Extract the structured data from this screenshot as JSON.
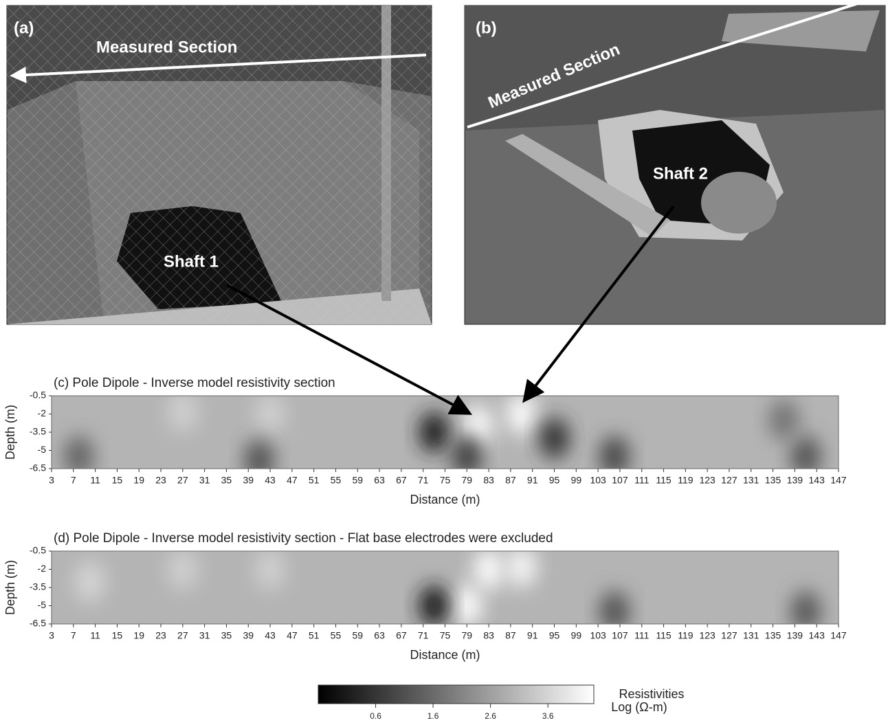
{
  "photos": [
    {
      "label": "(a)",
      "section": "Measured Section",
      "shaft": "Shaft 1"
    },
    {
      "label": "(b)",
      "section": "Measured Section",
      "shaft": "Shaft 2"
    }
  ],
  "chart_data": [
    {
      "type": "contour",
      "title": "(c) Pole Dipole - Inverse model resistivity section",
      "x_label": "Distance (m)",
      "y_label": "Depth (m)",
      "xlim": [
        3,
        147
      ],
      "ylim": [
        -6.5,
        -0.5
      ],
      "xticks": [
        3,
        7,
        11,
        15,
        19,
        23,
        27,
        31,
        35,
        39,
        43,
        47,
        51,
        55,
        59,
        63,
        67,
        71,
        75,
        79,
        83,
        87,
        91,
        95,
        99,
        103,
        107,
        111,
        115,
        119,
        123,
        127,
        131,
        135,
        139,
        143,
        147
      ],
      "yticks": [
        -0.5,
        -2,
        -3.5,
        -5,
        -6.5
      ],
      "x": [
        81,
        89,
        73,
        95,
        79,
        27,
        43,
        106,
        41,
        141,
        137,
        8
      ],
      "y": [
        -3,
        -2,
        -3.5,
        -4,
        -5.5,
        -1.8,
        -2,
        -5.5,
        -5.8,
        -5.5,
        -2.5,
        -5.5
      ],
      "values": [
        4.3,
        4.3,
        0.2,
        0.6,
        0.8,
        3.5,
        3.5,
        1.0,
        1.2,
        1.2,
        1.8,
        1.5
      ]
    },
    {
      "type": "contour",
      "title": "(d) Pole Dipole - Inverse model resistivity section - Flat base electrodes were excluded",
      "x_label": "Distance (m)",
      "y_label": "Depth (m)",
      "xlim": [
        3,
        147
      ],
      "ylim": [
        -6.5,
        -0.5
      ],
      "xticks": [
        3,
        7,
        11,
        15,
        19,
        23,
        27,
        31,
        35,
        39,
        43,
        47,
        51,
        55,
        59,
        63,
        67,
        71,
        75,
        79,
        83,
        87,
        91,
        95,
        99,
        103,
        107,
        111,
        115,
        119,
        123,
        127,
        131,
        135,
        139,
        143,
        147
      ],
      "yticks": [
        -0.5,
        -2,
        -3.5,
        -5,
        -6.5
      ],
      "x": [
        83,
        89,
        79,
        73,
        10,
        27,
        43,
        106,
        141
      ],
      "y": [
        -2,
        -1.8,
        -5,
        -5,
        -3,
        -2,
        -2,
        -5.5,
        -5.5
      ],
      "values": [
        4.3,
        4.2,
        4.3,
        0.1,
        3.6,
        3.5,
        3.5,
        1.2,
        1.3
      ]
    }
  ],
  "colorbar": {
    "title": "Resistivities",
    "unit": "Log (Ω-m)",
    "lim": [
      -0.4,
      4.4
    ],
    "ticks": [
      0.6,
      1.6,
      2.6,
      3.6
    ]
  }
}
